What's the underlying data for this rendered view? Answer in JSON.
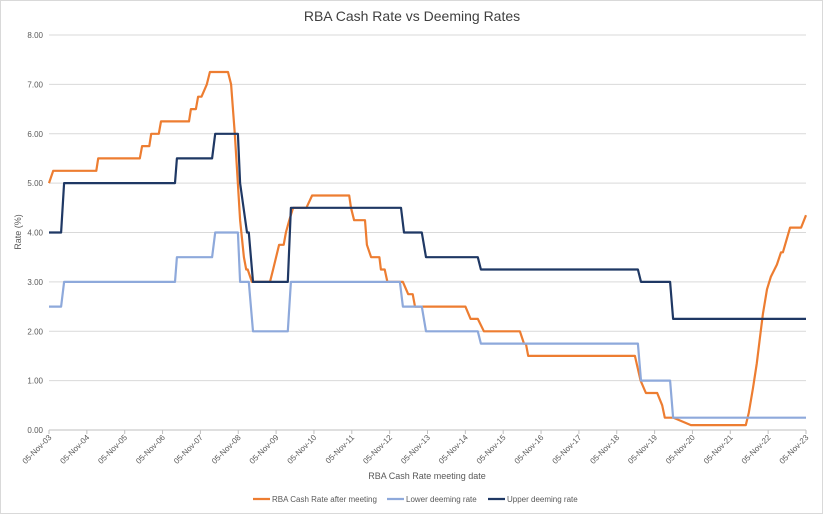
{
  "chart_data": {
    "type": "line",
    "title": "RBA Cash Rate vs Deeming Rates",
    "xlabel": "RBA Cash Rate meeting date",
    "ylabel": "Rate (%)",
    "ylim": [
      0,
      8
    ],
    "xlim": [
      2003.85,
      2023.85
    ],
    "yticks": [
      "0.00",
      "1.00",
      "2.00",
      "3.00",
      "4.00",
      "5.00",
      "6.00",
      "7.00",
      "8.00"
    ],
    "xticks": [
      "05-Nov-03",
      "05-Nov-04",
      "05-Nov-05",
      "05-Nov-06",
      "05-Nov-07",
      "05-Nov-08",
      "05-Nov-09",
      "05-Nov-10",
      "05-Nov-11",
      "05-Nov-12",
      "05-Nov-13",
      "05-Nov-14",
      "05-Nov-15",
      "05-Nov-16",
      "05-Nov-17",
      "05-Nov-18",
      "05-Nov-19",
      "05-Nov-20",
      "05-Nov-21",
      "05-Nov-22",
      "05-Nov-23"
    ],
    "grid": true,
    "legend_position": "bottom",
    "series": [
      {
        "name": "RBA Cash Rate after meeting",
        "color": "#ED7D31",
        "points": [
          [
            2003.85,
            5.0
          ],
          [
            2003.96,
            5.25
          ],
          [
            2005.1,
            5.25
          ],
          [
            2005.15,
            5.5
          ],
          [
            2006.25,
            5.5
          ],
          [
            2006.31,
            5.75
          ],
          [
            2006.5,
            5.75
          ],
          [
            2006.55,
            6.0
          ],
          [
            2006.75,
            6.0
          ],
          [
            2006.81,
            6.25
          ],
          [
            2007.55,
            6.25
          ],
          [
            2007.6,
            6.5
          ],
          [
            2007.73,
            6.5
          ],
          [
            2007.79,
            6.75
          ],
          [
            2007.88,
            6.75
          ],
          [
            2008.02,
            7.0
          ],
          [
            2008.1,
            7.25
          ],
          [
            2008.58,
            7.25
          ],
          [
            2008.66,
            7.0
          ],
          [
            2008.76,
            6.0
          ],
          [
            2008.82,
            5.25
          ],
          [
            2008.9,
            4.25
          ],
          [
            2009.0,
            3.5
          ],
          [
            2009.06,
            3.25
          ],
          [
            2009.1,
            3.25
          ],
          [
            2009.21,
            3.0
          ],
          [
            2009.69,
            3.0
          ],
          [
            2009.77,
            3.25
          ],
          [
            2009.93,
            3.75
          ],
          [
            2010.05,
            3.75
          ],
          [
            2010.11,
            4.0
          ],
          [
            2010.2,
            4.25
          ],
          [
            2010.3,
            4.5
          ],
          [
            2010.65,
            4.5
          ],
          [
            2010.8,
            4.75
          ],
          [
            2011.78,
            4.75
          ],
          [
            2011.83,
            4.5
          ],
          [
            2011.91,
            4.25
          ],
          [
            2012.2,
            4.25
          ],
          [
            2012.25,
            3.75
          ],
          [
            2012.36,
            3.5
          ],
          [
            2012.58,
            3.5
          ],
          [
            2012.62,
            3.25
          ],
          [
            2012.72,
            3.25
          ],
          [
            2012.79,
            3.0
          ],
          [
            2013.2,
            3.0
          ],
          [
            2013.34,
            2.75
          ],
          [
            2013.46,
            2.75
          ],
          [
            2013.52,
            2.5
          ],
          [
            2014.85,
            2.5
          ],
          [
            2014.99,
            2.25
          ],
          [
            2015.18,
            2.25
          ],
          [
            2015.34,
            2.0
          ],
          [
            2016.29,
            2.0
          ],
          [
            2016.4,
            1.75
          ],
          [
            2016.45,
            1.75
          ],
          [
            2016.51,
            1.5
          ],
          [
            2019.33,
            1.5
          ],
          [
            2019.48,
            1.0
          ],
          [
            2019.62,
            0.75
          ],
          [
            2019.92,
            0.75
          ],
          [
            2020.05,
            0.5
          ],
          [
            2020.12,
            0.25
          ],
          [
            2020.23,
            0.25
          ],
          [
            2020.35,
            0.25
          ],
          [
            2020.81,
            0.1
          ],
          [
            2022.26,
            0.1
          ],
          [
            2022.34,
            0.35
          ],
          [
            2022.45,
            0.85
          ],
          [
            2022.55,
            1.35
          ],
          [
            2022.63,
            1.85
          ],
          [
            2022.71,
            2.35
          ],
          [
            2022.82,
            2.85
          ],
          [
            2022.92,
            3.1
          ],
          [
            2023.08,
            3.35
          ],
          [
            2023.19,
            3.6
          ],
          [
            2023.24,
            3.6
          ],
          [
            2023.43,
            4.1
          ],
          [
            2023.72,
            4.1
          ],
          [
            2023.85,
            4.35
          ]
        ]
      },
      {
        "name": "Lower deeming rate",
        "color": "#8EA9DB",
        "points": [
          [
            2003.85,
            2.5
          ],
          [
            2004.17,
            2.5
          ],
          [
            2004.25,
            3.0
          ],
          [
            2007.18,
            3.0
          ],
          [
            2007.23,
            3.5
          ],
          [
            2008.16,
            3.5
          ],
          [
            2008.24,
            4.0
          ],
          [
            2008.84,
            4.0
          ],
          [
            2008.9,
            3.0
          ],
          [
            2009.13,
            3.0
          ],
          [
            2009.24,
            2.0
          ],
          [
            2010.16,
            2.0
          ],
          [
            2010.24,
            3.0
          ],
          [
            2013.12,
            3.0
          ],
          [
            2013.2,
            2.5
          ],
          [
            2013.7,
            2.5
          ],
          [
            2013.81,
            2.0
          ],
          [
            2015.18,
            2.0
          ],
          [
            2015.26,
            1.75
          ],
          [
            2019.41,
            1.75
          ],
          [
            2019.49,
            1.0
          ],
          [
            2020.26,
            1.0
          ],
          [
            2020.34,
            0.25
          ],
          [
            2023.85,
            0.25
          ]
        ]
      },
      {
        "name": "Upper deeming rate",
        "color": "#1F3864",
        "points": [
          [
            2003.85,
            4.0
          ],
          [
            2004.17,
            4.0
          ],
          [
            2004.25,
            5.0
          ],
          [
            2007.18,
            5.0
          ],
          [
            2007.23,
            5.5
          ],
          [
            2008.16,
            5.5
          ],
          [
            2008.24,
            6.0
          ],
          [
            2008.84,
            6.0
          ],
          [
            2008.9,
            5.0
          ],
          [
            2009.08,
            4.0
          ],
          [
            2009.13,
            4.0
          ],
          [
            2009.24,
            3.0
          ],
          [
            2010.16,
            3.0
          ],
          [
            2010.24,
            4.5
          ],
          [
            2013.15,
            4.5
          ],
          [
            2013.23,
            4.0
          ],
          [
            2013.7,
            4.0
          ],
          [
            2013.81,
            3.5
          ],
          [
            2015.18,
            3.5
          ],
          [
            2015.26,
            3.25
          ],
          [
            2019.41,
            3.25
          ],
          [
            2019.49,
            3.0
          ],
          [
            2020.26,
            3.0
          ],
          [
            2020.34,
            2.25
          ],
          [
            2023.85,
            2.25
          ]
        ]
      }
    ]
  }
}
